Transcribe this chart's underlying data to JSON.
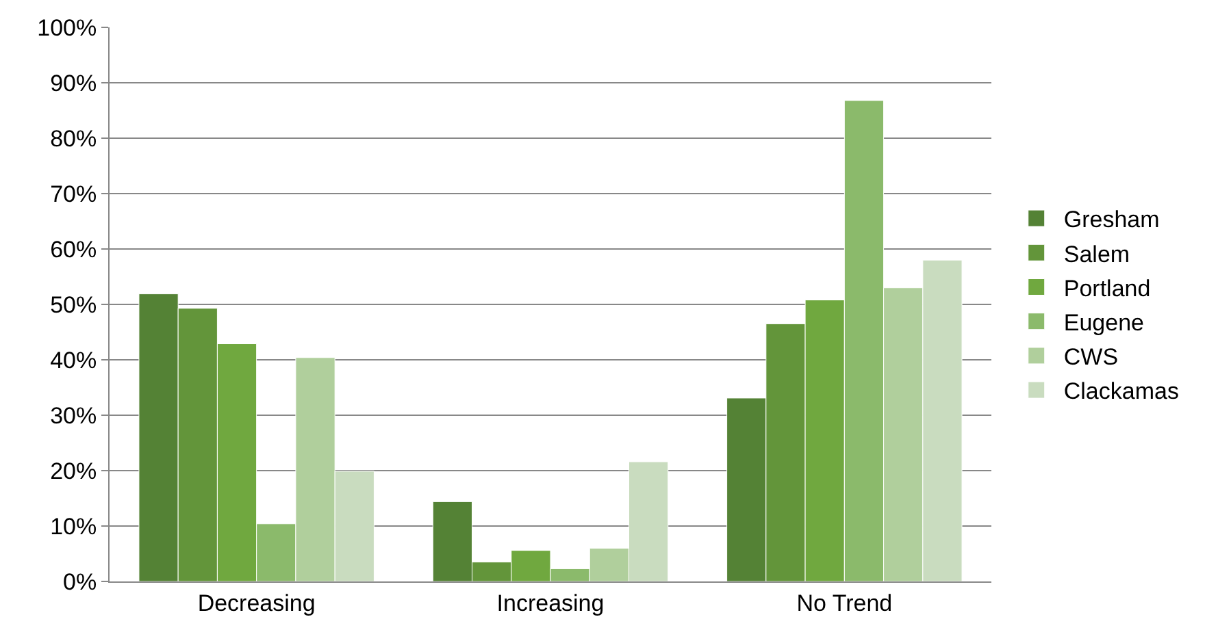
{
  "chart_data": {
    "type": "bar",
    "categories": [
      "Decreasing",
      "Increasing",
      "No Trend"
    ],
    "series": [
      {
        "name": "Gresham",
        "color": "#548235",
        "values": [
          51.9,
          14.4,
          33.1
        ]
      },
      {
        "name": "Salem",
        "color": "#63953a",
        "values": [
          49.3,
          3.5,
          46.5
        ]
      },
      {
        "name": "Portland",
        "color": "#70a83f",
        "values": [
          42.9,
          5.6,
          50.8
        ]
      },
      {
        "name": "Eugene",
        "color": "#8bba6b",
        "values": [
          10.4,
          2.3,
          86.8
        ]
      },
      {
        "name": "CWS",
        "color": "#b0cf9c",
        "values": [
          40.4,
          6.0,
          53.0
        ]
      },
      {
        "name": "Clackamas",
        "color": "#c9dcbf",
        "values": [
          19.9,
          21.6,
          58.0
        ]
      }
    ],
    "ylim": [
      0,
      100
    ],
    "yticks": [
      {
        "value": 0,
        "label": "0%"
      },
      {
        "value": 10,
        "label": "10%"
      },
      {
        "value": 20,
        "label": "20%"
      },
      {
        "value": 30,
        "label": "30%"
      },
      {
        "value": 40,
        "label": "40%"
      },
      {
        "value": 50,
        "label": "50%"
      },
      {
        "value": 60,
        "label": "60%"
      },
      {
        "value": 70,
        "label": "70%"
      },
      {
        "value": 80,
        "label": "80%"
      },
      {
        "value": 90,
        "label": "90%"
      },
      {
        "value": 100,
        "label": "100%"
      }
    ],
    "grid": "y",
    "legend": "right"
  }
}
